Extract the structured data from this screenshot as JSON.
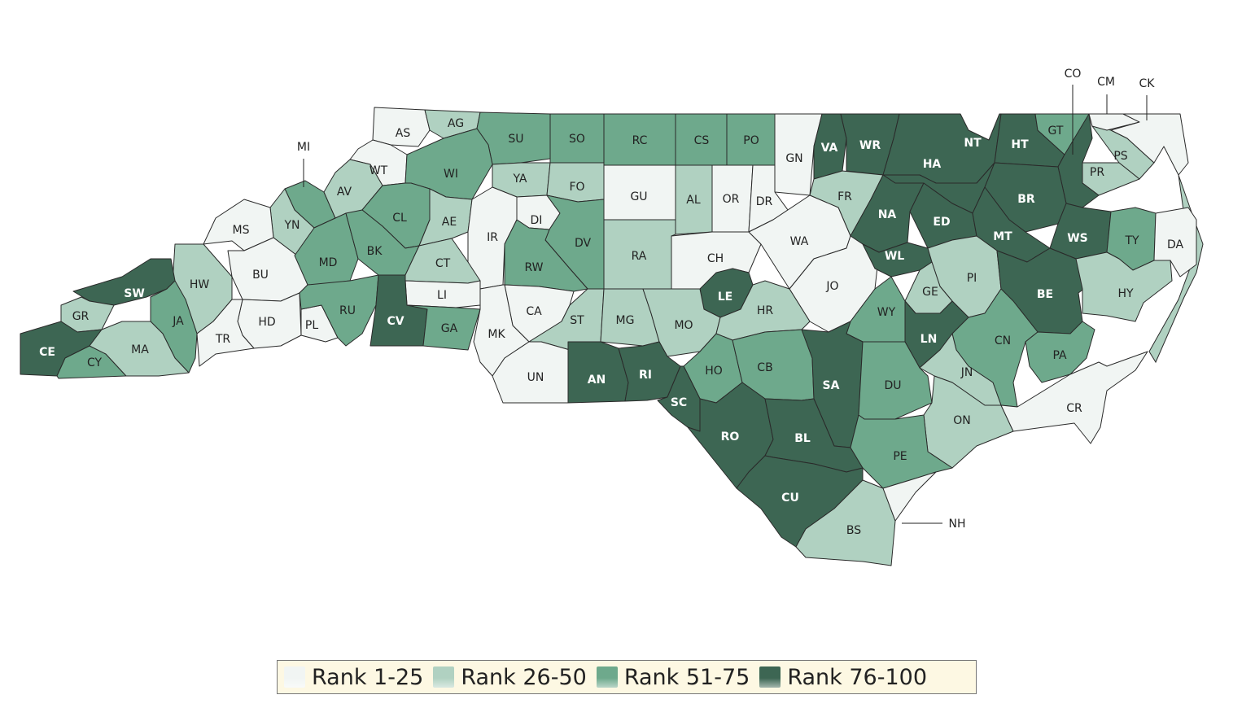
{
  "colors": {
    "rank_1_25": "#f1f5f3",
    "rank_26_50": "#b0d1c1",
    "rank_51_75": "#6ea98c",
    "rank_76_100": "#3d6653"
  },
  "legend": [
    {
      "label": "Rank 1-25",
      "tier": "rank_1_25"
    },
    {
      "label": "Rank 26-50",
      "tier": "rank_26_50"
    },
    {
      "label": "Rank 51-75",
      "tier": "rank_51_75"
    },
    {
      "label": "Rank 76-100",
      "tier": "rank_76_100"
    }
  ],
  "counties": [
    {
      "code": "AS",
      "tier": "rank_1_25"
    },
    {
      "code": "AG",
      "tier": "rank_26_50"
    },
    {
      "code": "SU",
      "tier": "rank_51_75"
    },
    {
      "code": "SO",
      "tier": "rank_51_75"
    },
    {
      "code": "RC",
      "tier": "rank_51_75"
    },
    {
      "code": "CS",
      "tier": "rank_51_75"
    },
    {
      "code": "PO",
      "tier": "rank_51_75"
    },
    {
      "code": "GN",
      "tier": "rank_1_25"
    },
    {
      "code": "VA",
      "tier": "rank_76_100"
    },
    {
      "code": "WR",
      "tier": "rank_76_100"
    },
    {
      "code": "NT",
      "tier": "rank_76_100"
    },
    {
      "code": "HT",
      "tier": "rank_76_100"
    },
    {
      "code": "GT",
      "tier": "rank_51_75"
    },
    {
      "code": "PS",
      "tier": "rank_26_50"
    },
    {
      "code": "PR",
      "tier": "rank_26_50"
    },
    {
      "code": "CO",
      "tier": "rank_76_100"
    },
    {
      "code": "CM",
      "tier": "rank_1_25"
    },
    {
      "code": "CK",
      "tier": "rank_1_25"
    },
    {
      "code": "WT",
      "tier": "rank_1_25"
    },
    {
      "code": "WI",
      "tier": "rank_51_75"
    },
    {
      "code": "YA",
      "tier": "rank_26_50"
    },
    {
      "code": "FO",
      "tier": "rank_26_50"
    },
    {
      "code": "GU",
      "tier": "rank_1_25"
    },
    {
      "code": "AL",
      "tier": "rank_26_50"
    },
    {
      "code": "OR",
      "tier": "rank_1_25"
    },
    {
      "code": "DR",
      "tier": "rank_1_25"
    },
    {
      "code": "FR",
      "tier": "rank_26_50"
    },
    {
      "code": "HA",
      "tier": "rank_76_100"
    },
    {
      "code": "BR",
      "tier": "rank_76_100"
    },
    {
      "code": "MI",
      "tier": "rank_51_75"
    },
    {
      "code": "AV",
      "tier": "rank_26_50"
    },
    {
      "code": "YN",
      "tier": "rank_26_50"
    },
    {
      "code": "MS",
      "tier": "rank_1_25"
    },
    {
      "code": "CL",
      "tier": "rank_51_75"
    },
    {
      "code": "AE",
      "tier": "rank_26_50"
    },
    {
      "code": "DI",
      "tier": "rank_1_25"
    },
    {
      "code": "IR",
      "tier": "rank_1_25"
    },
    {
      "code": "DV",
      "tier": "rank_51_75"
    },
    {
      "code": "RA",
      "tier": "rank_26_50"
    },
    {
      "code": "CH",
      "tier": "rank_1_25"
    },
    {
      "code": "WA",
      "tier": "rank_1_25"
    },
    {
      "code": "NA",
      "tier": "rank_76_100"
    },
    {
      "code": "ED",
      "tier": "rank_76_100"
    },
    {
      "code": "MT",
      "tier": "rank_76_100"
    },
    {
      "code": "WS",
      "tier": "rank_76_100"
    },
    {
      "code": "TY",
      "tier": "rank_51_75"
    },
    {
      "code": "DA",
      "tier": "rank_1_25"
    },
    {
      "code": "BU",
      "tier": "rank_1_25"
    },
    {
      "code": "MD",
      "tier": "rank_51_75"
    },
    {
      "code": "BK",
      "tier": "rank_51_75"
    },
    {
      "code": "CT",
      "tier": "rank_26_50"
    },
    {
      "code": "RW",
      "tier": "rank_51_75"
    },
    {
      "code": "JO",
      "tier": "rank_1_25"
    },
    {
      "code": "WL",
      "tier": "rank_76_100"
    },
    {
      "code": "PI",
      "tier": "rank_26_50"
    },
    {
      "code": "HW",
      "tier": "rank_26_50"
    },
    {
      "code": "SW",
      "tier": "rank_76_100"
    },
    {
      "code": "LI",
      "tier": "rank_1_25"
    },
    {
      "code": "LE",
      "tier": "rank_76_100"
    },
    {
      "code": "GE",
      "tier": "rank_26_50"
    },
    {
      "code": "BE",
      "tier": "rank_76_100"
    },
    {
      "code": "HY",
      "tier": "rank_26_50"
    },
    {
      "code": "GR",
      "tier": "rank_26_50"
    },
    {
      "code": "JA",
      "tier": "rank_51_75"
    },
    {
      "code": "HD",
      "tier": "rank_1_25"
    },
    {
      "code": "PL",
      "tier": "rank_1_25"
    },
    {
      "code": "RU",
      "tier": "rank_51_75"
    },
    {
      "code": "CV",
      "tier": "rank_76_100"
    },
    {
      "code": "GA",
      "tier": "rank_51_75"
    },
    {
      "code": "CA",
      "tier": "rank_1_25"
    },
    {
      "code": "ST",
      "tier": "rank_26_50"
    },
    {
      "code": "MG",
      "tier": "rank_26_50"
    },
    {
      "code": "MO",
      "tier": "rank_26_50"
    },
    {
      "code": "HR",
      "tier": "rank_26_50"
    },
    {
      "code": "WY",
      "tier": "rank_51_75"
    },
    {
      "code": "TR",
      "tier": "rank_1_25"
    },
    {
      "code": "MK",
      "tier": "rank_1_25"
    },
    {
      "code": "CE",
      "tier": "rank_76_100"
    },
    {
      "code": "CY",
      "tier": "rank_51_75"
    },
    {
      "code": "MA",
      "tier": "rank_26_50"
    },
    {
      "code": "LN",
      "tier": "rank_76_100"
    },
    {
      "code": "CN",
      "tier": "rank_51_75"
    },
    {
      "code": "PA",
      "tier": "rank_51_75"
    },
    {
      "code": "UN",
      "tier": "rank_1_25"
    },
    {
      "code": "AN",
      "tier": "rank_76_100"
    },
    {
      "code": "RI",
      "tier": "rank_76_100"
    },
    {
      "code": "HO",
      "tier": "rank_51_75"
    },
    {
      "code": "CB",
      "tier": "rank_51_75"
    },
    {
      "code": "SA",
      "tier": "rank_76_100"
    },
    {
      "code": "DU",
      "tier": "rank_51_75"
    },
    {
      "code": "JN",
      "tier": "rank_26_50"
    },
    {
      "code": "SC",
      "tier": "rank_76_100"
    },
    {
      "code": "RO",
      "tier": "rank_76_100"
    },
    {
      "code": "BL",
      "tier": "rank_76_100"
    },
    {
      "code": "ON",
      "tier": "rank_26_50"
    },
    {
      "code": "CR",
      "tier": "rank_1_25"
    },
    {
      "code": "PE",
      "tier": "rank_51_75"
    },
    {
      "code": "CU",
      "tier": "rank_76_100"
    },
    {
      "code": "BS",
      "tier": "rank_26_50"
    },
    {
      "code": "NH",
      "tier": "rank_1_25"
    }
  ]
}
